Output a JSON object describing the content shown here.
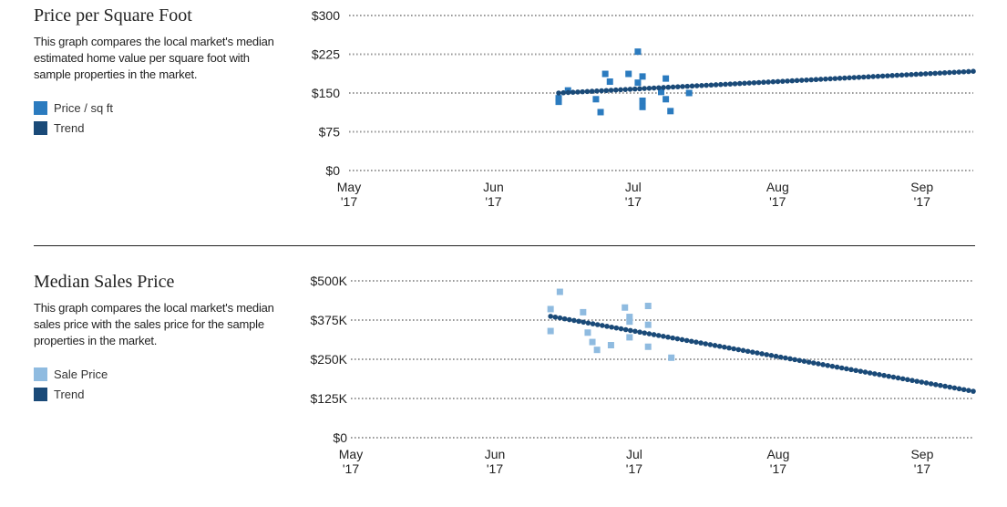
{
  "chart_data": [
    {
      "type": "scatter",
      "title": "Price per Square Foot",
      "description": "This graph compares the local market's median estimated home value per square foot with sample properties in the market.",
      "legend": [
        {
          "label": "Price / sq ft",
          "color": "#2b7bbf"
        },
        {
          "label": "Trend",
          "color": "#1a4a78"
        }
      ],
      "y_ticks": [
        {
          "value": 0,
          "label": "$0"
        },
        {
          "value": 75,
          "label": "$75"
        },
        {
          "value": 150,
          "label": "$150"
        },
        {
          "value": 225,
          "label": "$225"
        },
        {
          "value": 300,
          "label": "$300"
        }
      ],
      "x_ticks": [
        {
          "value": 0,
          "month": "May",
          "year": "'17"
        },
        {
          "value": 31,
          "month": "Jun",
          "year": "'17"
        },
        {
          "value": 61,
          "month": "Jul",
          "year": "'17"
        },
        {
          "value": 92,
          "month": "Aug",
          "year": "'17"
        },
        {
          "value": 123,
          "month": "Sep",
          "year": "'17"
        }
      ],
      "xlim": [
        0,
        134
      ],
      "ylim": [
        0,
        300
      ],
      "grid": true,
      "series": [
        {
          "name": "Price / sq ft",
          "kind": "points",
          "color": "#2b7bbf",
          "points": [
            [
              45,
              133
            ],
            [
              45,
              140
            ],
            [
              47,
              155
            ],
            [
              53,
              138
            ],
            [
              54,
              113
            ],
            [
              55,
              187
            ],
            [
              56,
              172
            ],
            [
              60,
              187
            ],
            [
              62,
              170
            ],
            [
              62,
              230
            ],
            [
              63,
              135
            ],
            [
              63,
              182
            ],
            [
              63,
              123
            ],
            [
              67,
              152
            ],
            [
              68,
              178
            ],
            [
              68,
              138
            ],
            [
              69,
              115
            ],
            [
              73,
              150
            ]
          ]
        },
        {
          "name": "Trend",
          "kind": "trend",
          "color": "#1a4a78",
          "from": [
            45,
            150
          ],
          "to": [
            134,
            192
          ]
        }
      ]
    },
    {
      "type": "scatter",
      "title": "Median Sales Price",
      "description": "This graph compares the local market's median sales price with the sales price for the sample properties in the market.",
      "legend": [
        {
          "label": "Sale Price",
          "color": "#8fbbe0"
        },
        {
          "label": "Trend",
          "color": "#1a4a78"
        }
      ],
      "y_ticks": [
        {
          "value": 0,
          "label": "$0"
        },
        {
          "value": 125000,
          "label": "$125K"
        },
        {
          "value": 250000,
          "label": "$250K"
        },
        {
          "value": 375000,
          "label": "$375K"
        },
        {
          "value": 500000,
          "label": "$500K"
        }
      ],
      "x_ticks": [
        {
          "value": 0,
          "month": "May",
          "year": "'17"
        },
        {
          "value": 31,
          "month": "Jun",
          "year": "'17"
        },
        {
          "value": 61,
          "month": "Jul",
          "year": "'17"
        },
        {
          "value": 92,
          "month": "Aug",
          "year": "'17"
        },
        {
          "value": 123,
          "month": "Sep",
          "year": "'17"
        }
      ],
      "xlim": [
        0,
        134
      ],
      "ylim": [
        0,
        500000
      ],
      "grid": true,
      "series": [
        {
          "name": "Sale Price",
          "kind": "points",
          "color": "#8fbbe0",
          "points": [
            [
              43,
              410000
            ],
            [
              43,
              340000
            ],
            [
              45,
              465000
            ],
            [
              50,
              400000
            ],
            [
              51,
              335000
            ],
            [
              52,
              305000
            ],
            [
              53,
              280000
            ],
            [
              56,
              295000
            ],
            [
              59,
              415000
            ],
            [
              60,
              370000
            ],
            [
              60,
              385000
            ],
            [
              60,
              320000
            ],
            [
              64,
              420000
            ],
            [
              64,
              360000
            ],
            [
              64,
              290000
            ],
            [
              69,
              255000
            ]
          ]
        },
        {
          "name": "Trend",
          "kind": "trend",
          "color": "#1a4a78",
          "from": [
            43,
            387000
          ],
          "to": [
            134,
            148000
          ]
        }
      ]
    }
  ]
}
